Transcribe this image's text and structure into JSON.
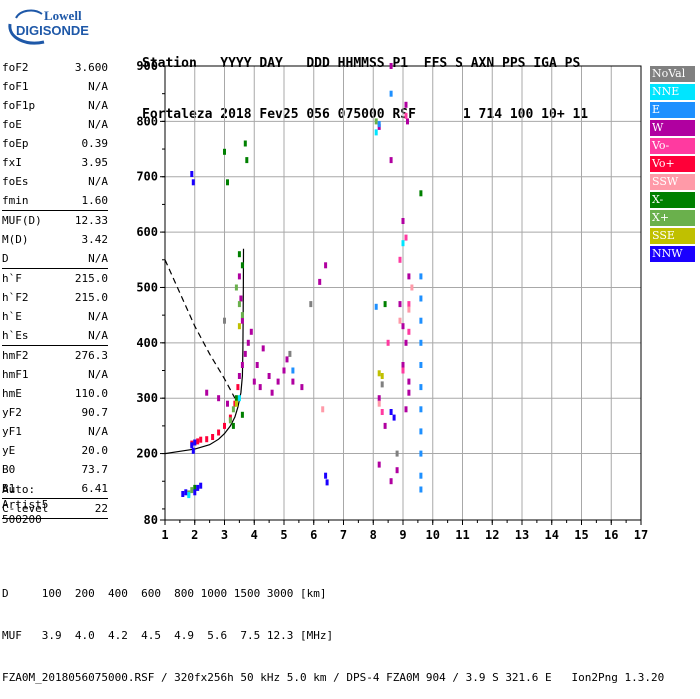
{
  "logo": {
    "line1": "Lowell",
    "line2": "DIGISONDE"
  },
  "header": {
    "line1": "Station   YYYY DAY   DDD HHMMSS P1  FFS S AXN PPS IGA PS",
    "line2": "Fortaleza 2018 Fev25 056 075000 RSF      1 714 100 10+ 11"
  },
  "params": [
    {
      "name": "foF2",
      "value": "3.600"
    },
    {
      "name": "foF1",
      "value": "N/A"
    },
    {
      "name": "foF1p",
      "value": "N/A"
    },
    {
      "name": "foE",
      "value": "N/A"
    },
    {
      "name": "foEp",
      "value": "0.39"
    },
    {
      "name": "fxI",
      "value": "3.95"
    },
    {
      "name": "foEs",
      "value": "N/A"
    },
    {
      "name": "fmin",
      "value": "1.60"
    },
    {
      "sep": true
    },
    {
      "name": "MUF(D)",
      "value": "12.33"
    },
    {
      "name": "M(D)",
      "value": "3.42"
    },
    {
      "name": "D",
      "value": "N/A"
    },
    {
      "sep": true
    },
    {
      "name": "h`F",
      "value": "215.0"
    },
    {
      "name": "h`F2",
      "value": "215.0"
    },
    {
      "name": "h`E",
      "value": "N/A"
    },
    {
      "name": "h`Es",
      "value": "N/A"
    },
    {
      "sep": true
    },
    {
      "name": "hmF2",
      "value": "276.3"
    },
    {
      "name": "hmF1",
      "value": "N/A"
    },
    {
      "name": "hmE",
      "value": "110.0"
    },
    {
      "name": "yF2",
      "value": "90.7"
    },
    {
      "name": "yF1",
      "value": "N/A"
    },
    {
      "name": "yE",
      "value": "20.0"
    },
    {
      "name": "B0",
      "value": "73.7"
    },
    {
      "name": "B1",
      "value": "6.41"
    },
    {
      "sep": true
    },
    {
      "name": "C-level",
      "value": "22"
    },
    {
      "sep": true
    }
  ],
  "auto": {
    "line1": "Auto:",
    "line2": "Artist5",
    "line3": "500200"
  },
  "legend": [
    {
      "label": "NoVal",
      "color": "#808080"
    },
    {
      "label": "NNE",
      "color": "#00e5ff"
    },
    {
      "label": "E",
      "color": "#1e90ff"
    },
    {
      "label": "W",
      "color": "#b000a0"
    },
    {
      "label": "Vo-",
      "color": "#ff3aa0"
    },
    {
      "label": "Vo+",
      "color": "#ff0038"
    },
    {
      "label": "SSW",
      "color": "#ff9aa8"
    },
    {
      "label": "X-",
      "color": "#008000"
    },
    {
      "label": "X+",
      "color": "#6ab04c"
    },
    {
      "label": "SSE",
      "color": "#c0c000"
    },
    {
      "label": "NNW",
      "color": "#1a00ff"
    }
  ],
  "footer": {
    "line1": "D     100  200  400  600  800 1000 1500 3000 [km]",
    "line2": "MUF   3.9  4.0  4.2  4.5  4.9  5.6  7.5 12.3 [MHz]",
    "line3": "FZA0M_2018056075000.RSF / 320fx256h 50 kHz 5.0 km / DPS-4 FZA0M 904 / 3.9 S 321.6 E   Ion2Png 1.3.20"
  },
  "chart_data": {
    "type": "scatter",
    "title": "",
    "xlabel": "",
    "ylabel": "",
    "xlim": [
      1,
      17
    ],
    "ylim": [
      80,
      900
    ],
    "x_ticks": [
      1,
      2,
      3,
      4,
      5,
      6,
      7,
      8,
      9,
      10,
      11,
      12,
      13,
      14,
      15,
      16,
      17
    ],
    "y_ticks": [
      80,
      200,
      300,
      400,
      500,
      600,
      700,
      800,
      900
    ],
    "grid": true,
    "series": [
      {
        "color": "#ff0038",
        "points": [
          [
            1.9,
            218
          ],
          [
            2.0,
            220
          ],
          [
            2.1,
            222
          ],
          [
            2.2,
            225
          ],
          [
            2.4,
            226
          ],
          [
            2.6,
            230
          ],
          [
            2.8,
            238
          ],
          [
            3.0,
            250
          ],
          [
            3.2,
            265
          ],
          [
            3.35,
            290
          ],
          [
            3.45,
            320
          ]
        ]
      },
      {
        "color": "#b000a0",
        "points": [
          [
            3.5,
            340
          ],
          [
            3.6,
            360
          ],
          [
            3.7,
            380
          ],
          [
            3.8,
            400
          ],
          [
            4.0,
            330
          ],
          [
            4.2,
            320
          ],
          [
            4.5,
            340
          ],
          [
            4.8,
            330
          ],
          [
            5.0,
            350
          ],
          [
            5.3,
            330
          ],
          [
            5.6,
            320
          ],
          [
            4.3,
            390
          ],
          [
            3.9,
            420
          ],
          [
            4.1,
            360
          ],
          [
            4.6,
            310
          ],
          [
            5.1,
            370
          ],
          [
            3.6,
            440
          ],
          [
            3.55,
            480
          ],
          [
            3.5,
            520
          ],
          [
            2.4,
            310
          ],
          [
            2.8,
            300
          ],
          [
            3.1,
            290
          ],
          [
            6.4,
            540
          ],
          [
            6.2,
            510
          ],
          [
            8.6,
            900
          ],
          [
            9.1,
            830
          ],
          [
            9.15,
            800
          ],
          [
            8.2,
            790
          ],
          [
            8.6,
            730
          ],
          [
            9.0,
            620
          ],
          [
            9.2,
            520
          ],
          [
            8.9,
            470
          ],
          [
            9.0,
            430
          ],
          [
            9.1,
            400
          ],
          [
            9.0,
            360
          ],
          [
            9.2,
            330
          ],
          [
            8.2,
            300
          ],
          [
            8.4,
            250
          ],
          [
            8.2,
            180
          ],
          [
            8.6,
            150
          ],
          [
            8.8,
            170
          ],
          [
            9.1,
            280
          ],
          [
            9.2,
            310
          ]
        ]
      },
      {
        "color": "#008000",
        "points": [
          [
            3.5,
            560
          ],
          [
            3.6,
            540
          ],
          [
            3.7,
            760
          ],
          [
            3.75,
            730
          ],
          [
            3.4,
            300
          ],
          [
            3.6,
            270
          ],
          [
            3.3,
            250
          ],
          [
            9.6,
            670
          ],
          [
            8.4,
            470
          ],
          [
            3.1,
            690
          ],
          [
            3.0,
            745
          ],
          [
            2.0,
            138
          ]
        ]
      },
      {
        "color": "#6ab04c",
        "points": [
          [
            3.4,
            500
          ],
          [
            3.5,
            470
          ],
          [
            3.6,
            450
          ],
          [
            3.3,
            280
          ],
          [
            3.2,
            260
          ],
          [
            1.8,
            128
          ],
          [
            1.9,
            134
          ],
          [
            8.1,
            800
          ]
        ]
      },
      {
        "color": "#1e90ff",
        "points": [
          [
            9.6,
            520
          ],
          [
            9.6,
            480
          ],
          [
            9.6,
            440
          ],
          [
            9.6,
            400
          ],
          [
            9.6,
            360
          ],
          [
            9.6,
            320
          ],
          [
            9.6,
            280
          ],
          [
            9.6,
            240
          ],
          [
            9.6,
            200
          ],
          [
            9.6,
            160
          ],
          [
            9.6,
            135
          ],
          [
            8.1,
            465
          ],
          [
            8.6,
            850
          ],
          [
            8.2,
            795
          ],
          [
            5.3,
            350
          ]
        ]
      },
      {
        "color": "#1a00ff",
        "points": [
          [
            1.9,
            705
          ],
          [
            1.95,
            690
          ],
          [
            1.9,
            215
          ],
          [
            2.0,
            220
          ],
          [
            1.95,
            205
          ],
          [
            1.6,
            127
          ],
          [
            1.7,
            130
          ],
          [
            2.0,
            130
          ],
          [
            2.1,
            138
          ],
          [
            2.2,
            142
          ],
          [
            6.4,
            160
          ],
          [
            6.45,
            148
          ],
          [
            8.6,
            275
          ],
          [
            8.7,
            265
          ]
        ]
      },
      {
        "color": "#c0c000",
        "points": [
          [
            8.2,
            345
          ],
          [
            8.3,
            340
          ],
          [
            3.5,
            430
          ],
          [
            3.4,
            290
          ]
        ]
      },
      {
        "color": "#00e5ff",
        "points": [
          [
            9.0,
            580
          ],
          [
            8.1,
            780
          ],
          [
            3.5,
            300
          ],
          [
            1.8,
            125
          ]
        ]
      },
      {
        "color": "#ff3aa0",
        "points": [
          [
            9.1,
            590
          ],
          [
            8.9,
            550
          ],
          [
            9.0,
            350
          ],
          [
            9.2,
            420
          ],
          [
            8.5,
            400
          ],
          [
            8.3,
            275
          ],
          [
            9.1,
            810
          ],
          [
            9.2,
            470
          ]
        ]
      },
      {
        "color": "#ff9aa8",
        "points": [
          [
            9.3,
            500
          ],
          [
            8.2,
            290
          ],
          [
            8.9,
            440
          ],
          [
            9.2,
            460
          ],
          [
            6.3,
            280
          ]
        ]
      },
      {
        "color": "#808080",
        "points": [
          [
            5.2,
            380
          ],
          [
            8.3,
            325
          ],
          [
            5.9,
            470
          ],
          [
            3.0,
            440
          ],
          [
            8.8,
            200
          ]
        ]
      }
    ],
    "curves": [
      {
        "name": "profile",
        "style": "solid",
        "color": "#000000",
        "points": [
          [
            1.0,
            200
          ],
          [
            1.5,
            204
          ],
          [
            2.0,
            208
          ],
          [
            2.5,
            216
          ],
          [
            2.8,
            226
          ],
          [
            3.0,
            236
          ],
          [
            3.2,
            250
          ],
          [
            3.35,
            266
          ],
          [
            3.45,
            284
          ],
          [
            3.55,
            310
          ],
          [
            3.6,
            340
          ],
          [
            3.62,
            390
          ],
          [
            3.63,
            460
          ],
          [
            3.635,
            520
          ],
          [
            3.64,
            570
          ]
        ]
      },
      {
        "name": "extrapolation",
        "style": "dashed",
        "color": "#000000",
        "points": [
          [
            1.0,
            550
          ],
          [
            1.5,
            490
          ],
          [
            2.0,
            430
          ],
          [
            2.5,
            380
          ],
          [
            3.0,
            335
          ],
          [
            3.35,
            300
          ]
        ]
      }
    ]
  }
}
